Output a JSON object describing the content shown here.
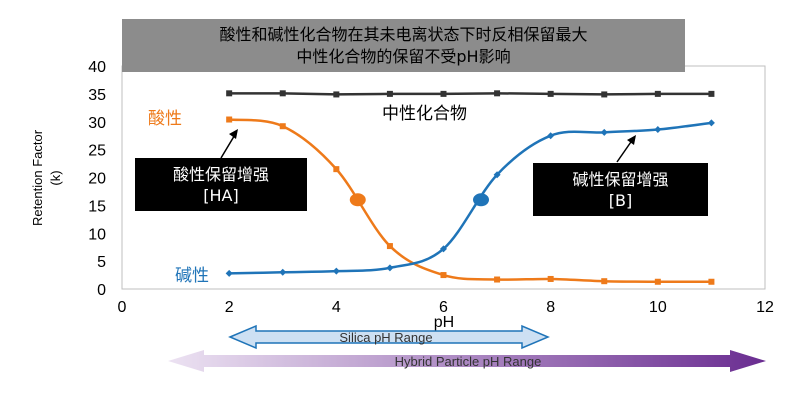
{
  "title": {
    "line1": "酸性和碱性化合物在其未电离状态下时反相保留最大",
    "line2": "中性化合物的保留不受pH影响"
  },
  "callouts": {
    "acid": {
      "line1": "酸性保留增强",
      "line2": "[HA]"
    },
    "base": {
      "line1": "碱性保留增强",
      "line2": "[B]"
    }
  },
  "ranges": {
    "silica": "Silica pH Range",
    "hybrid": "Hybrid Particle pH Range"
  },
  "colors": {
    "acid": "#ee7a1a",
    "base": "#1f74b8",
    "neutral": "#333333",
    "silica_arrow": "#cde0f3",
    "silica_border": "#1f74b8",
    "hybrid_start": "#ece2f2",
    "hybrid_end": "#6a2d91"
  },
  "chart_data": {
    "type": "line",
    "xlabel": "pH",
    "ylabel": "Retention Factor\n(k)",
    "xlim": [
      0,
      12
    ],
    "ylim": [
      0,
      40
    ],
    "xticks": [
      0,
      2,
      4,
      6,
      8,
      10,
      12
    ],
    "yticks": [
      0,
      5,
      10,
      15,
      20,
      25,
      30,
      35,
      40
    ],
    "grid": false,
    "series": [
      {
        "name": "中性化合物",
        "key": "neutral",
        "marker": "square",
        "x": [
          2,
          3,
          4,
          5,
          6,
          7,
          8,
          9,
          10,
          11
        ],
        "y": [
          35.1,
          35.1,
          34.9,
          35.0,
          35.0,
          35.1,
          35.0,
          34.9,
          35.0,
          35.0
        ]
      },
      {
        "name": "酸性",
        "key": "acid",
        "marker": "square",
        "x": [
          2,
          3,
          4,
          5,
          6,
          7,
          8,
          9,
          10,
          11
        ],
        "y": [
          30.4,
          29.2,
          21.5,
          7.7,
          2.5,
          1.7,
          1.8,
          1.4,
          1.3,
          1.3
        ],
        "pka": {
          "x": 4.4,
          "y": 16
        }
      },
      {
        "name": "碱性",
        "key": "base",
        "marker": "diamond",
        "x": [
          2,
          3,
          4,
          5,
          6,
          7,
          8,
          9,
          10,
          11
        ],
        "y": [
          2.8,
          3.0,
          3.2,
          3.8,
          7.2,
          20.5,
          27.5,
          28.1,
          28.6,
          29.8
        ],
        "pka": {
          "x": 6.7,
          "y": 16
        }
      }
    ]
  }
}
